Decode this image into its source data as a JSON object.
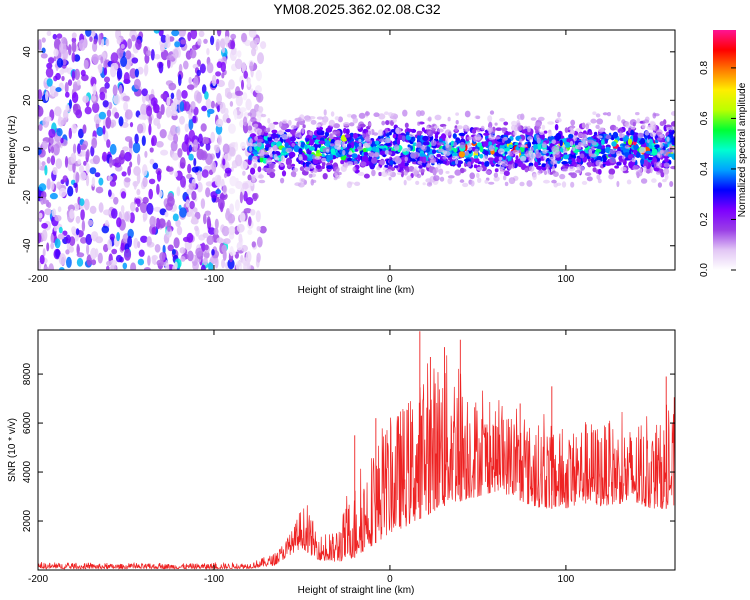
{
  "title": "YM08.2025.362.02.08.C32",
  "chart_data": [
    {
      "type": "heatmap",
      "name": "spectrogram",
      "xlabel": "Height of straight line (km)",
      "ylabel": "Frequency (Hz)",
      "xlim": [
        -200,
        162
      ],
      "ylim": [
        -50,
        49
      ],
      "xticks": [
        -200,
        -100,
        0,
        100
      ],
      "xtick_labels": [
        "-200",
        "-100",
        "0",
        "100"
      ],
      "yticks": [
        -40,
        -20,
        0,
        20,
        40
      ],
      "ytick_labels": [
        "-40",
        "-20",
        "0",
        "20",
        "40"
      ],
      "colorbar": {
        "label": "Normalized spectral amplitude",
        "range": [
          0.0,
          0.95
        ],
        "ticks": [
          0.0,
          0.2,
          0.4,
          0.6,
          0.8
        ],
        "tick_labels": [
          "0.0",
          "0.2",
          "0.4",
          "0.6",
          "0.8"
        ],
        "colormap": [
          "#ffffff",
          "#e2c6f5",
          "#9a3fe6",
          "#7d00ff",
          "#0000ff",
          "#00a2ff",
          "#00ffd0",
          "#00ff33",
          "#bbff00",
          "#ffee00",
          "#ff7b00",
          "#ff0000",
          "#ff1493"
        ]
      },
      "regions": [
        {
          "description": "broadband noise",
          "x": [
            -200,
            -80
          ],
          "freq": [
            -50,
            49
          ],
          "amplitude": 0.3
        },
        {
          "description": "narrowband signal",
          "x": [
            -80,
            162
          ],
          "freq_center": 0,
          "freq_halfwidth": 10,
          "amplitude": 0.5,
          "peak_amplitude": 0.95
        }
      ]
    },
    {
      "type": "line",
      "name": "snr",
      "color": "#ee2222",
      "xlabel": "Height of straight line (km)",
      "ylabel": "SNR (10 * v/v)",
      "xlim": [
        -200,
        162
      ],
      "ylim": [
        0,
        9800
      ],
      "xticks": [
        -200,
        -100,
        0,
        100
      ],
      "xtick_labels": [
        "-200",
        "-100",
        "0",
        "100"
      ],
      "yticks": [
        2000,
        4000,
        6000,
        8000
      ],
      "ytick_labels": [
        "2000",
        "4000",
        "6000",
        "8000"
      ],
      "envelope": {
        "x": [
          -200,
          -150,
          -100,
          -80,
          -65,
          -55,
          -50,
          -45,
          -40,
          -35,
          -30,
          -20,
          -10,
          0,
          10,
          20,
          30,
          40,
          50,
          60,
          70,
          80,
          90,
          100,
          110,
          120,
          130,
          140,
          150,
          162
        ],
        "low": [
          50,
          50,
          50,
          60,
          200,
          700,
          900,
          600,
          400,
          300,
          300,
          500,
          1000,
          1500,
          1800,
          2200,
          2600,
          2800,
          3000,
          3200,
          3000,
          2600,
          2500,
          2500,
          2700,
          2600,
          2700,
          2600,
          2500,
          2500
        ],
        "high": [
          300,
          250,
          280,
          300,
          700,
          1700,
          2700,
          2200,
          1500,
          1300,
          1800,
          3500,
          5000,
          6200,
          7000,
          8000,
          9000,
          8500,
          7000,
          6500,
          6500,
          6000,
          6000,
          5500,
          6200,
          6000,
          6000,
          5800,
          5800,
          6500
        ]
      },
      "peaks": [
        {
          "x": 17,
          "y": 9750
        },
        {
          "x": 40,
          "y": 9400
        },
        {
          "x": 31,
          "y": 9100
        },
        {
          "x": 23,
          "y": 8700
        },
        {
          "x": 157,
          "y": 7900
        },
        {
          "x": 92,
          "y": 7500
        },
        {
          "x": 74,
          "y": 6800
        },
        {
          "x": -20,
          "y": 5500
        },
        {
          "x": -8,
          "y": 6200
        }
      ]
    }
  ]
}
